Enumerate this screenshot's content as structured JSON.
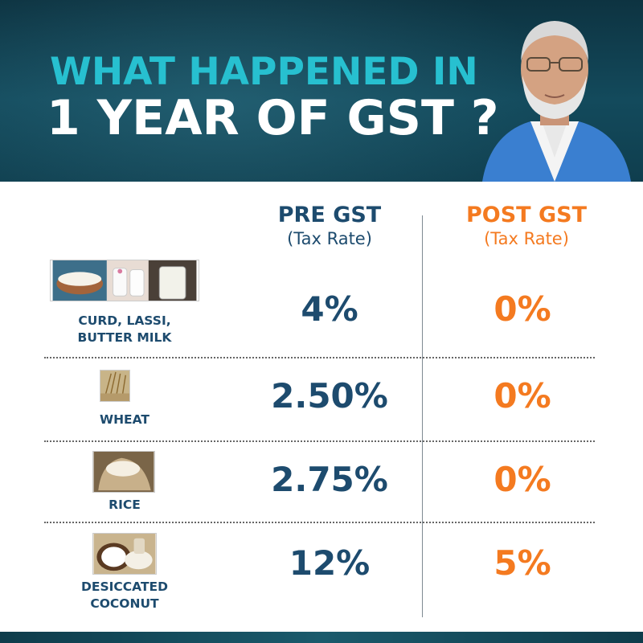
{
  "header": {
    "title_line1": "WHAT HAPPENED IN",
    "title_line2": "1 YEAR OF GST ?"
  },
  "columns": {
    "pre": {
      "title": "PRE GST",
      "subtitle": "(Tax Rate)"
    },
    "post": {
      "title": "POST GST",
      "subtitle": "(Tax Rate)"
    }
  },
  "rows": [
    {
      "item": [
        "CURD, LASSI,",
        "BUTTER MILK"
      ],
      "pre": "4%",
      "post": "0%"
    },
    {
      "item": [
        "WHEAT"
      ],
      "pre": "2.50%",
      "post": "0%"
    },
    {
      "item": [
        "RICE"
      ],
      "pre": "2.75%",
      "post": "0%"
    },
    {
      "item": [
        "DESICCATED",
        "COCONUT"
      ],
      "pre": "12%",
      "post": "5%"
    }
  ],
  "colors": {
    "header_bg": "#134a5c",
    "title_accent": "#27c0d0",
    "pre_color": "#1d4b6e",
    "post_color": "#f47a20"
  }
}
